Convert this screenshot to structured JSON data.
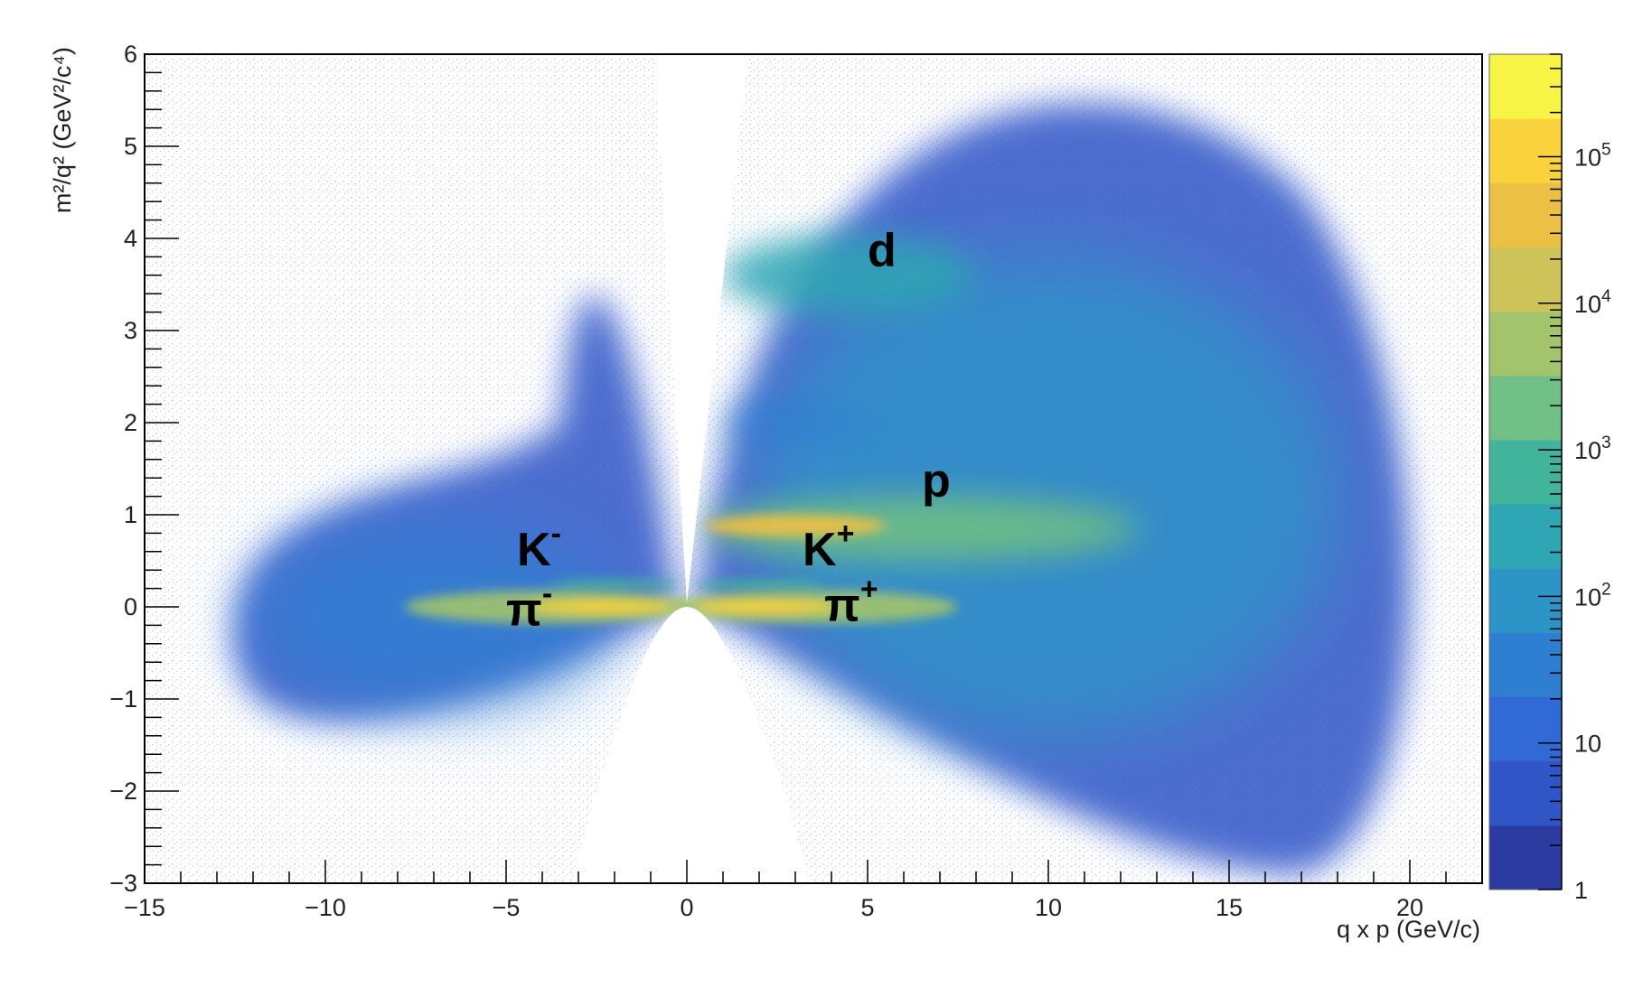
{
  "chart_data": {
    "type": "heatmap",
    "title": "",
    "xlabel": "q x p (GeV/c)",
    "ylabel": "m²/q² (GeV²/c⁴)",
    "xlim": [
      -15,
      22
    ],
    "ylim": [
      -3,
      6
    ],
    "x_ticks": [
      "−15",
      "−10",
      "−5",
      "0",
      "5",
      "10",
      "15",
      "20"
    ],
    "x_tick_values": [
      -15,
      -10,
      -5,
      0,
      5,
      10,
      15,
      20
    ],
    "y_ticks": [
      "−3",
      "−2",
      "−1",
      "0",
      "1",
      "2",
      "3",
      "4",
      "5",
      "6"
    ],
    "y_tick_values": [
      -3,
      -2,
      -1,
      0,
      1,
      2,
      3,
      4,
      5,
      6
    ],
    "colorbar": {
      "scale": "log",
      "range": [
        1,
        500000
      ],
      "labels": [
        {
          "value": 1,
          "text": "1"
        },
        {
          "value": 10,
          "text": "10"
        },
        {
          "value": 100,
          "base": "10",
          "exp": "2"
        },
        {
          "value": 1000,
          "base": "10",
          "exp": "3"
        },
        {
          "value": 10000,
          "base": "10",
          "exp": "4"
        },
        {
          "value": 100000,
          "base": "10",
          "exp": "5"
        }
      ],
      "colors": [
        "#2c3b9f",
        "#2f55c7",
        "#3169d6",
        "#2e7fd2",
        "#2d94c8",
        "#2fa6b4",
        "#43b49c",
        "#70bf84",
        "#a3c46c",
        "#cdc358",
        "#ecbf45",
        "#fad23c",
        "#f8f445"
      ]
    },
    "annotations": [
      {
        "id": "d",
        "base": "d",
        "sup": "",
        "x": 5.0,
        "y": 3.7
      },
      {
        "id": "p",
        "base": "p",
        "sup": "",
        "x": 6.5,
        "y": 1.2
      },
      {
        "id": "k-minus",
        "base": "K",
        "sup": "-",
        "x": -4.7,
        "y": 0.45
      },
      {
        "id": "k-plus",
        "base": "K",
        "sup": "+",
        "x": 3.2,
        "y": 0.45
      },
      {
        "id": "pi-minus",
        "base": "π",
        "sup": "-",
        "x": -5.0,
        "y": -0.2
      },
      {
        "id": "pi-plus",
        "base": "π",
        "sup": "+",
        "x": 3.8,
        "y": -0.15
      }
    ],
    "bands": [
      {
        "name": "π-",
        "x": [
          -10,
          -0.3
        ],
        "y_center": 0.0,
        "peak": 300000
      },
      {
        "name": "K-",
        "x": [
          -4,
          -0.3
        ],
        "y_center": 0.24,
        "peak": 5000
      },
      {
        "name": "π+",
        "x": [
          0.3,
          10
        ],
        "y_center": 0.0,
        "peak": 300000
      },
      {
        "name": "K+",
        "x": [
          0.3,
          5
        ],
        "y_center": 0.24,
        "peak": 5000
      },
      {
        "name": "p",
        "x": [
          0.5,
          15
        ],
        "y_center": 0.88,
        "peak": 100000
      },
      {
        "name": "d",
        "x": [
          1,
          12
        ],
        "y_center": 3.55,
        "peak": 3000
      }
    ]
  }
}
